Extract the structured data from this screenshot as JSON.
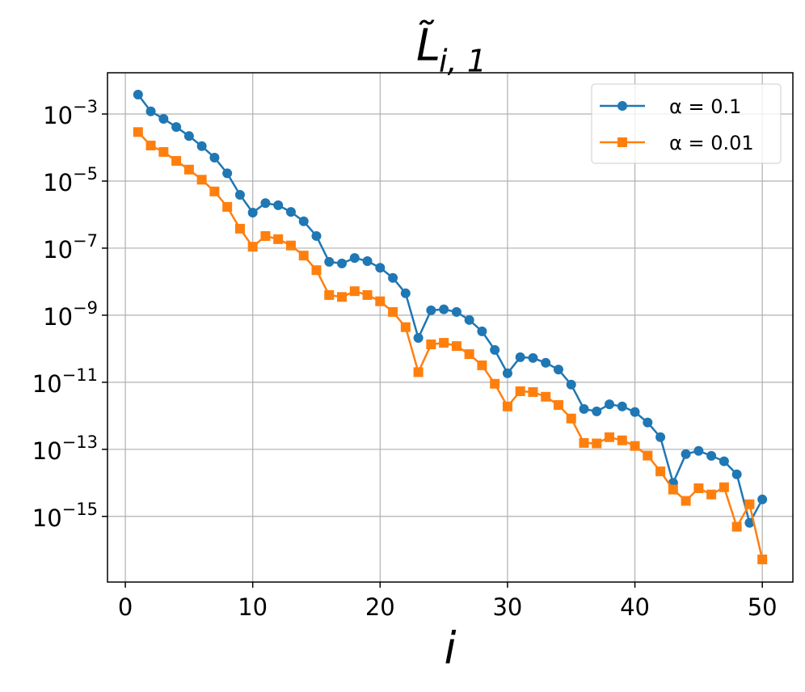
{
  "chart_data": {
    "type": "line",
    "title": "L̃",
    "title_subscript": "i, 1",
    "xlabel": "i",
    "x": [
      1,
      2,
      3,
      4,
      5,
      6,
      7,
      8,
      9,
      10,
      11,
      12,
      13,
      14,
      15,
      16,
      17,
      18,
      19,
      20,
      21,
      22,
      23,
      24,
      25,
      26,
      27,
      28,
      29,
      30,
      31,
      32,
      33,
      34,
      35,
      36,
      37,
      38,
      39,
      40,
      41,
      42,
      43,
      44,
      45,
      46,
      47,
      48,
      49,
      50
    ],
    "series": [
      {
        "name": "α = 0.1",
        "color": "#1f77b4",
        "marker": "circle",
        "values": [
          0.0038,
          0.0012,
          0.00072,
          0.00041,
          0.00022,
          0.00011,
          5e-05,
          1.7e-05,
          3.9e-06,
          1.15e-06,
          2.2e-06,
          1.9e-06,
          1.2e-06,
          6.3e-07,
          2.3e-07,
          3.9e-08,
          3.5e-08,
          5.1e-08,
          4.1e-08,
          2.6e-08,
          1.3e-08,
          4.5e-09,
          2.1e-10,
          1.4e-09,
          1.5e-09,
          1.25e-09,
          7.2e-10,
          3.3e-10,
          9.2e-11,
          1.85e-11,
          5.6e-11,
          5.3e-11,
          3.8e-11,
          2.4e-11,
          8.5e-12,
          1.6e-12,
          1.35e-12,
          2.2e-12,
          1.9e-12,
          1.3e-12,
          6.3e-13,
          2.3e-13,
          1e-14,
          7.2e-14,
          9e-14,
          6.4e-14,
          4.4e-14,
          1.8e-14,
          6.4e-16,
          3.2e-15
        ]
      },
      {
        "name": "α = 0.01",
        "color": "#ff7f0e",
        "marker": "square",
        "values": [
          0.00029,
          0.000115,
          7.4e-05,
          4e-05,
          2.2e-05,
          1.1e-05,
          4.9e-06,
          1.7e-06,
          3.8e-07,
          1.1e-07,
          2.3e-07,
          1.85e-07,
          1.2e-07,
          6e-08,
          2.2e-08,
          4e-09,
          3.5e-09,
          5.2e-09,
          4e-09,
          2.6e-09,
          1.25e-09,
          4.4e-10,
          2e-11,
          1.35e-10,
          1.5e-10,
          1.2e-10,
          6.9e-11,
          3.2e-11,
          9e-12,
          1.9e-12,
          5.4e-12,
          5.1e-12,
          3.7e-12,
          2.1e-12,
          8.3e-13,
          1.55e-13,
          1.5e-13,
          2.3e-13,
          1.85e-13,
          1.26e-13,
          6.5e-14,
          2.2e-14,
          6.3e-15,
          2.9e-15,
          6.9e-15,
          4.5e-15,
          7.4e-15,
          4.9e-16,
          2.3e-15,
          5.2e-17
        ]
      }
    ],
    "xlim": [
      -1.4,
      52.4
    ],
    "xticks": [
      0,
      10,
      20,
      30,
      40,
      50
    ],
    "ylim": [
      1.1e-17,
      0.017
    ],
    "log_y": true,
    "yticks": [
      {
        "value": 0.001,
        "label": "10−3"
      },
      {
        "value": 1e-05,
        "label": "10−5"
      },
      {
        "value": 1e-07,
        "label": "10−7"
      },
      {
        "value": 1e-09,
        "label": "10−9"
      },
      {
        "value": 1e-11,
        "label": "10−11"
      },
      {
        "value": 1e-13,
        "label": "10−13"
      },
      {
        "value": 1e-15,
        "label": "10−15"
      }
    ],
    "grid": true,
    "legend": "upper right"
  }
}
